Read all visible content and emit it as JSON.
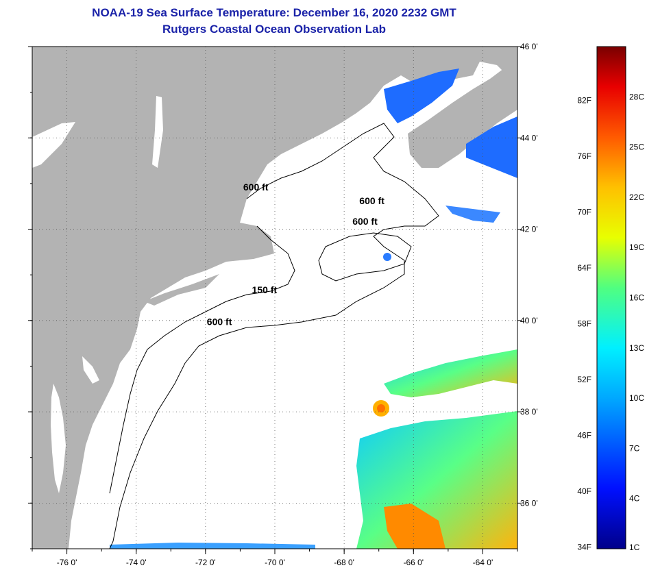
{
  "title": {
    "line1": "NOAA-19 Sea Surface Temperature:  December 16, 2020 2232 GMT",
    "line2": "Rutgers Coastal Ocean Observation Lab"
  },
  "map": {
    "lon_range": [
      -77,
      -63
    ],
    "lat_range": [
      35,
      46
    ],
    "lon_ticks": [
      {
        "value": -76,
        "label": "-76 0'"
      },
      {
        "value": -74,
        "label": "-74 0'"
      },
      {
        "value": -72,
        "label": "-72 0'"
      },
      {
        "value": -70,
        "label": "-70 0'"
      },
      {
        "value": -68,
        "label": "-68 0'"
      },
      {
        "value": -66,
        "label": "-66 0'"
      },
      {
        "value": -64,
        "label": "-64 0'"
      }
    ],
    "lat_ticks": [
      {
        "value": 46,
        "label": "46 0'"
      },
      {
        "value": 44,
        "label": "44 0'"
      },
      {
        "value": 42,
        "label": "42 0'"
      },
      {
        "value": 40,
        "label": "40 0'"
      },
      {
        "value": 38,
        "label": "38 0'"
      },
      {
        "value": 36,
        "label": "36 0'"
      }
    ],
    "contour_labels": [
      {
        "text": "600 ft",
        "lon": -70.55,
        "lat": 42.85
      },
      {
        "text": "600 ft",
        "lon": -67.2,
        "lat": 42.55
      },
      {
        "text": "600 ft",
        "lon": -67.4,
        "lat": 42.1
      },
      {
        "text": "150 ft",
        "lon": -70.3,
        "lat": 40.6
      },
      {
        "text": "600 ft",
        "lon": -71.6,
        "lat": 39.9
      }
    ],
    "colors": {
      "land": "#b3b3b3",
      "ocean_nodata": "#ffffff",
      "title": "#1a22a8"
    }
  },
  "colorbar": {
    "min_c": 1,
    "max_c": 31,
    "fahrenheit_labels": [
      "34F",
      "40F",
      "46F",
      "52F",
      "58F",
      "64F",
      "70F",
      "76F",
      "82F"
    ],
    "celsius_labels": [
      "1C",
      "4C",
      "7C",
      "10C",
      "13C",
      "16C",
      "19C",
      "22C",
      "25C",
      "28C"
    ]
  }
}
